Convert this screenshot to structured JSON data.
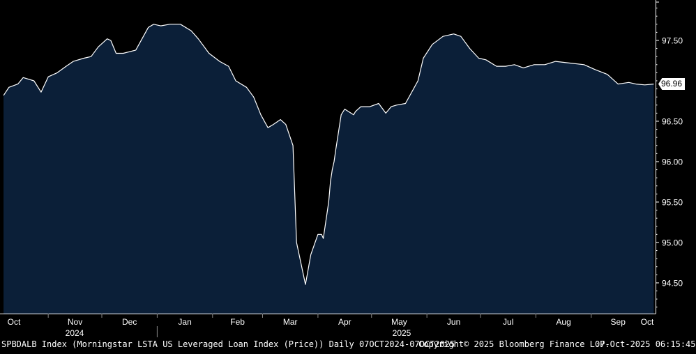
{
  "chart_data": {
    "type": "area",
    "ticker": "SPBDALB Index",
    "series": [
      {
        "name": "SPBDALB Index",
        "x": [
          "2024-10-07",
          "2024-10-10",
          "2024-10-15",
          "2024-10-18",
          "2024-10-24",
          "2024-10-28",
          "2024-11-01",
          "2024-11-06",
          "2024-11-11",
          "2024-11-15",
          "2024-11-21",
          "2024-11-25",
          "2024-11-29",
          "2024-12-04",
          "2024-12-06",
          "2024-12-09",
          "2024-12-13",
          "2024-12-20",
          "2024-12-27",
          "2024-12-30",
          "2025-01-03",
          "2025-01-08",
          "2025-01-14",
          "2025-01-20",
          "2025-01-24",
          "2025-01-30",
          "2025-02-05",
          "2025-02-10",
          "2025-02-14",
          "2025-02-20",
          "2025-02-24",
          "2025-02-28",
          "2025-03-04",
          "2025-03-07",
          "2025-03-11",
          "2025-03-14",
          "2025-03-18",
          "2025-03-20",
          "2025-03-25",
          "2025-03-28",
          "2025-04-01",
          "2025-04-03",
          "2025-04-04",
          "2025-04-07",
          "2025-04-08",
          "2025-04-09",
          "2025-04-10",
          "2025-04-11",
          "2025-04-14",
          "2025-04-16",
          "2025-04-21",
          "2025-04-22",
          "2025-04-25",
          "2025-04-30",
          "2025-05-05",
          "2025-05-09",
          "2025-05-12",
          "2025-05-15",
          "2025-05-20",
          "2025-05-27",
          "2025-05-30",
          "2025-06-04",
          "2025-06-10",
          "2025-06-16",
          "2025-06-20",
          "2025-06-25",
          "2025-06-30",
          "2025-07-04",
          "2025-07-10",
          "2025-07-15",
          "2025-07-20",
          "2025-07-25",
          "2025-07-31",
          "2025-08-06",
          "2025-08-12",
          "2025-08-20",
          "2025-08-28",
          "2025-09-03",
          "2025-09-10",
          "2025-09-16",
          "2025-09-22",
          "2025-09-26",
          "2025-10-01",
          "2025-10-06"
        ],
        "values": [
          96.82,
          96.92,
          96.96,
          97.04,
          97.0,
          96.86,
          97.05,
          97.1,
          97.18,
          97.24,
          97.28,
          97.3,
          97.42,
          97.52,
          97.5,
          97.34,
          97.34,
          97.38,
          97.66,
          97.7,
          97.68,
          97.7,
          97.7,
          97.62,
          97.52,
          97.34,
          97.24,
          97.18,
          97.0,
          96.92,
          96.8,
          96.58,
          96.42,
          96.46,
          96.52,
          96.46,
          96.2,
          95.0,
          94.48,
          94.85,
          95.1,
          95.1,
          95.05,
          95.5,
          95.75,
          95.9,
          96.0,
          96.15,
          96.58,
          96.65,
          96.58,
          96.62,
          96.68,
          96.68,
          96.72,
          96.6,
          96.68,
          96.7,
          96.72,
          97.0,
          97.28,
          97.45,
          97.55,
          97.58,
          97.55,
          97.4,
          97.28,
          97.26,
          97.18,
          97.18,
          97.2,
          97.16,
          97.2,
          97.2,
          97.24,
          97.22,
          97.2,
          97.14,
          97.08,
          96.96,
          96.98,
          96.96,
          96.95,
          96.96
        ]
      }
    ],
    "last_value": "96.96",
    "x_tick_labels": [
      "Oct",
      "Nov",
      "Dec",
      "Jan",
      "Feb",
      "Mar",
      "Apr",
      "May",
      "Jun",
      "Jul",
      "Aug",
      "Sep",
      "Oct"
    ],
    "year_labels": [
      "2024",
      "2025"
    ],
    "y_tick_labels": [
      "97.50",
      "96.50",
      "96.00",
      "95.50",
      "95.00",
      "94.50"
    ],
    "ylim": [
      94.12,
      98.0
    ],
    "xlim": [
      "2024-10-05",
      "2025-10-07"
    ],
    "grid": false,
    "colors": {
      "background": "#000000",
      "area_fill": "#0b1f38",
      "line": "#ffffff",
      "axis": "#ffffff"
    }
  },
  "footer": {
    "description": "SPBDALB Index (Morningstar LSTA US Leveraged Loan Index (Price)) Daily 07OCT2024-07OCT2025",
    "copyright": "Copyright© 2025 Bloomberg Finance L.P.",
    "timestamp": "07-Oct-2025 06:15:45"
  }
}
